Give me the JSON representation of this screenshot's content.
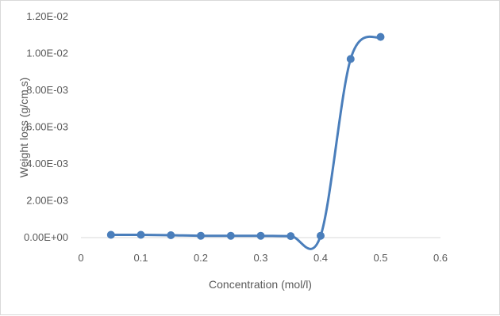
{
  "chart_data": {
    "type": "scatter",
    "title": "",
    "xlabel": "Concentration (mol/l)",
    "ylabel": "Weight loss (g/cm s)",
    "xlim": [
      0,
      0.6
    ],
    "ylim": [
      0,
      0.012
    ],
    "x_ticks": [
      "0",
      "0.1",
      "0.2",
      "0.3",
      "0.4",
      "0.5",
      "0.6"
    ],
    "y_ticks": [
      "0.00E+00",
      "2.00E-03",
      "4.00E-03",
      "6.00E-03",
      "8.00E-03",
      "1.00E-02",
      "1.20E-02"
    ],
    "grid": false,
    "legend": "none",
    "smooth_line": true,
    "series": [
      {
        "color": "#4a7ebb",
        "x": [
          0.05,
          0.1,
          0.15,
          0.2,
          0.25,
          0.3,
          0.35,
          0.4,
          0.45,
          0.5
        ],
        "y": [
          0.00015,
          0.00015,
          0.00013,
          0.0001,
          0.0001,
          0.0001,
          8e-05,
          0.0001,
          0.0097,
          0.0109
        ]
      }
    ]
  }
}
